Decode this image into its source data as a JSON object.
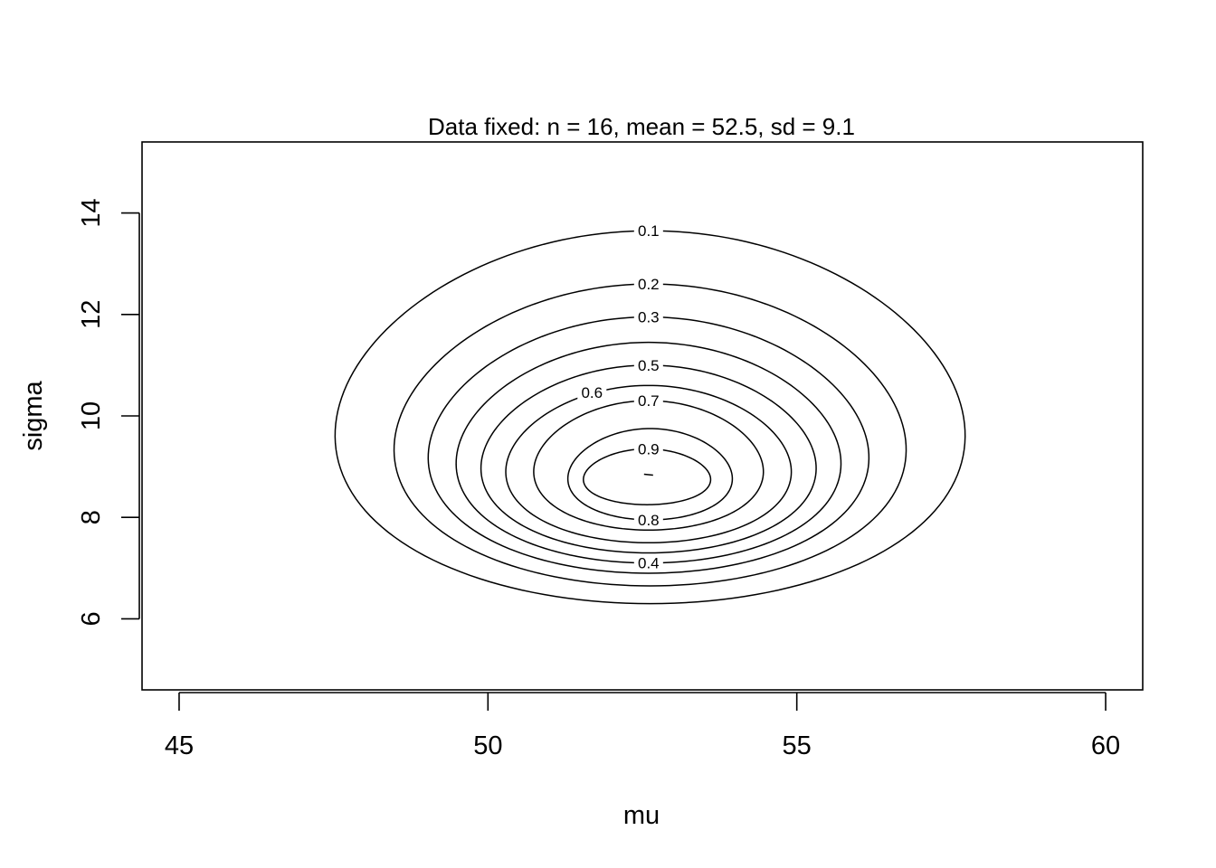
{
  "chart_data": {
    "type": "contour",
    "title": "Data fixed: n = 16, mean = 52.5, sd = 9.1",
    "xlabel": "mu",
    "ylabel": "sigma",
    "xlim": [
      44.4,
      60.6
    ],
    "ylim": [
      4.6,
      15.4
    ],
    "x_ticks": [
      45,
      50,
      55,
      60
    ],
    "x_tick_labels": [
      "45",
      "50",
      "55",
      "60"
    ],
    "y_ticks": [
      6,
      8,
      10,
      12,
      14
    ],
    "y_tick_labels": [
      "6",
      "8",
      "10",
      "12",
      "14"
    ],
    "grid": false,
    "legend": "none",
    "levels": [
      {
        "level": 0.1,
        "label": "0.1",
        "mu_min": 47.55,
        "mu_max": 57.7,
        "sigma_min": 6.3,
        "sigma_max": 13.65,
        "label_side": "top"
      },
      {
        "level": 0.2,
        "label": "0.2",
        "mu_min": 48.5,
        "mu_max": 56.75,
        "sigma_min": 6.65,
        "sigma_max": 12.6,
        "label_side": "top"
      },
      {
        "level": 0.3,
        "label": "0.3",
        "mu_min": 49.05,
        "mu_max": 56.15,
        "sigma_min": 6.9,
        "sigma_max": 11.95,
        "label_side": "top"
      },
      {
        "level": 0.4,
        "label": "0.4",
        "mu_min": 49.5,
        "mu_max": 55.7,
        "sigma_min": 7.1,
        "sigma_max": 11.45,
        "label_side": "bottom"
      },
      {
        "level": 0.5,
        "label": "0.5",
        "mu_min": 49.9,
        "mu_max": 55.3,
        "sigma_min": 7.3,
        "sigma_max": 11.0,
        "label_side": "top"
      },
      {
        "level": 0.6,
        "label": "0.6",
        "mu_min": 50.3,
        "mu_max": 54.9,
        "sigma_min": 7.5,
        "sigma_max": 10.6,
        "label_side": "top-left"
      },
      {
        "level": 0.7,
        "label": "0.7",
        "mu_min": 50.75,
        "mu_max": 54.45,
        "sigma_min": 7.75,
        "sigma_max": 10.3,
        "label_side": "top"
      },
      {
        "level": 0.8,
        "label": "0.8",
        "mu_min": 51.3,
        "mu_max": 53.95,
        "sigma_min": 7.95,
        "sigma_max": 9.75,
        "label_side": "bottom"
      },
      {
        "level": 0.9,
        "label": "0.9",
        "mu_min": 51.55,
        "mu_max": 53.6,
        "sigma_min": 8.25,
        "sigma_max": 9.35,
        "label_side": "top"
      }
    ],
    "peak": {
      "mu": 52.6,
      "sigma": 8.85
    }
  }
}
